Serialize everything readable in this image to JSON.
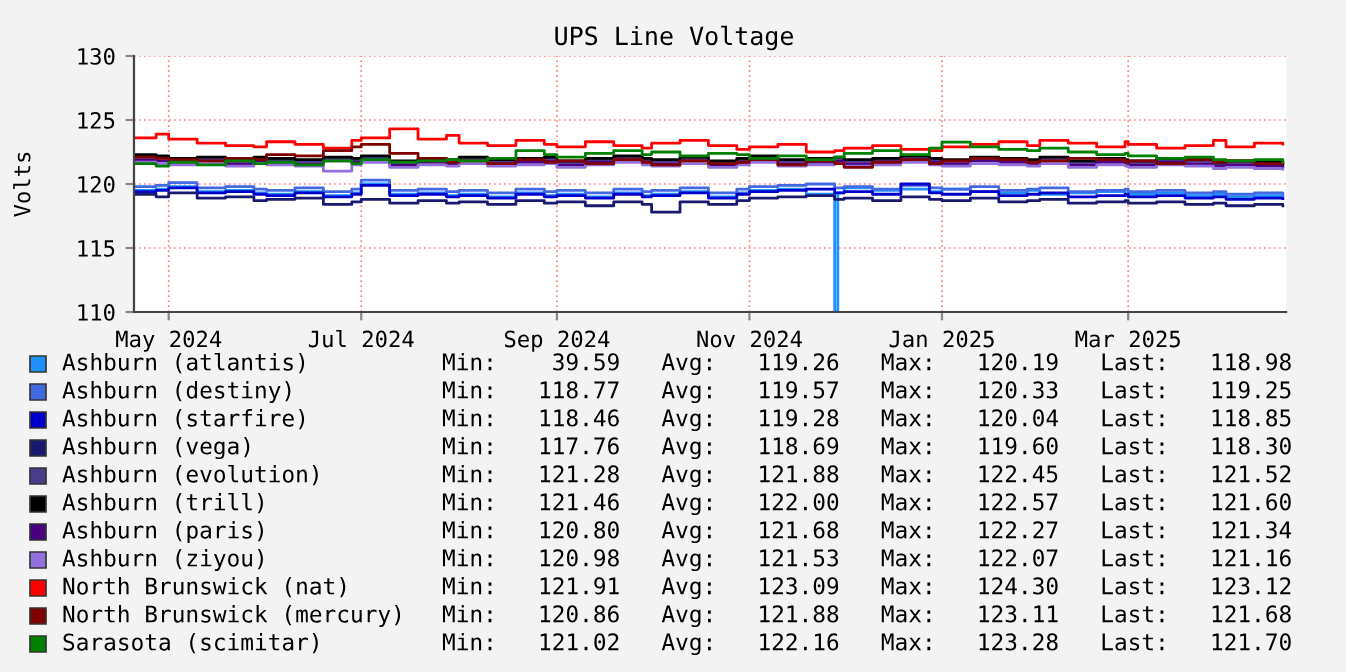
{
  "chart_data": {
    "type": "step",
    "title": "UPS Line Voltage",
    "ylabel": "Volts",
    "x": [
      "2024-04-20",
      "2024-04-27",
      "2024-05-01",
      "2024-05-10",
      "2024-05-19",
      "2024-05-28",
      "2024-06-01",
      "2024-06-10",
      "2024-06-19",
      "2024-06-28",
      "2024-07-01",
      "2024-07-10",
      "2024-07-19",
      "2024-07-28",
      "2024-08-01",
      "2024-08-10",
      "2024-08-19",
      "2024-08-28",
      "2024-09-01",
      "2024-09-10",
      "2024-09-19",
      "2024-09-28",
      "2024-10-01",
      "2024-10-10",
      "2024-10-19",
      "2024-10-28",
      "2024-11-01",
      "2024-11-10",
      "2024-11-19",
      "2024-11-28",
      "2024-12-01",
      "2024-12-10",
      "2024-12-19",
      "2024-12-28",
      "2025-01-01",
      "2025-01-10",
      "2025-01-19",
      "2025-01-28",
      "2025-02-01",
      "2025-02-10",
      "2025-02-19",
      "2025-02-28",
      "2025-03-01",
      "2025-03-10",
      "2025-03-19",
      "2025-03-28",
      "2025-04-01",
      "2025-04-10",
      "2025-04-19"
    ],
    "xlim": [
      "2024-04-20",
      "2025-04-20"
    ],
    "xticks": [
      {
        "value": "2024-05-01",
        "label": "May 2024"
      },
      {
        "value": "2024-07-01",
        "label": "Jul 2024"
      },
      {
        "value": "2024-09-01",
        "label": "Sep 2024"
      },
      {
        "value": "2024-11-01",
        "label": "Nov 2024"
      },
      {
        "value": "2025-01-01",
        "label": "Jan 2025"
      },
      {
        "value": "2025-03-01",
        "label": "Mar 2025"
      }
    ],
    "ylim": [
      110,
      130
    ],
    "yticks": [
      110,
      115,
      120,
      125,
      130
    ],
    "grid": true,
    "legend": "bottom",
    "series": [
      {
        "name": "Ashburn (atlantis)",
        "color": "#1e90ff",
        "x": [
          "2024-04-20",
          "2024-04-27",
          "2024-05-01",
          "2024-05-10",
          "2024-05-19",
          "2024-05-28",
          "2024-06-01",
          "2024-06-10",
          "2024-06-19",
          "2024-06-28",
          "2024-07-01",
          "2024-07-10",
          "2024-07-19",
          "2024-07-28",
          "2024-08-01",
          "2024-08-10",
          "2024-08-19",
          "2024-08-28",
          "2024-09-01",
          "2024-09-10",
          "2024-09-19",
          "2024-09-28",
          "2024-10-01",
          "2024-10-10",
          "2024-10-19",
          "2024-10-28",
          "2024-11-01",
          "2024-11-10",
          "2024-11-19",
          "2024-11-28",
          "2024-11-29",
          "2024-12-01",
          "2024-12-10",
          "2024-12-19",
          "2024-12-28",
          "2025-01-01",
          "2025-01-10",
          "2025-01-19",
          "2025-01-28",
          "2025-02-01",
          "2025-02-10",
          "2025-02-19",
          "2025-02-28",
          "2025-03-01",
          "2025-03-10",
          "2025-03-19",
          "2025-03-28",
          "2025-04-01",
          "2025-04-10",
          "2025-04-19"
        ],
        "values": [
          119.5,
          119.6,
          119.8,
          119.4,
          119.5,
          119.3,
          119.2,
          119.4,
          119.1,
          119.3,
          120.0,
          119.2,
          119.3,
          119.1,
          119.2,
          119.0,
          119.3,
          119.1,
          119.2,
          119.0,
          119.3,
          119.1,
          119.2,
          119.4,
          119.0,
          119.3,
          119.5,
          119.6,
          119.2,
          110,
          119.3,
          119.7,
          119.5,
          119.6,
          119.4,
          119.6,
          119.4,
          119.3,
          119.5,
          119.2,
          119.3,
          119.4,
          119.1,
          119.2,
          119.3,
          119.1,
          119.2,
          119.0,
          119.1,
          118.98
        ]
      },
      {
        "name": "Ashburn (destiny)",
        "color": "#4169e1",
        "values": [
          119.8,
          119.9,
          120.1,
          119.7,
          119.8,
          119.6,
          119.5,
          119.7,
          119.4,
          119.6,
          120.3,
          119.5,
          119.6,
          119.4,
          119.5,
          119.3,
          119.6,
          119.4,
          119.5,
          119.3,
          119.6,
          119.4,
          119.5,
          119.7,
          119.3,
          119.6,
          119.8,
          119.9,
          120.0,
          119.7,
          119.8,
          119.6,
          119.9,
          119.7,
          119.6,
          119.8,
          119.5,
          119.6,
          119.7,
          119.4,
          119.5,
          119.6,
          119.4,
          119.5,
          119.3,
          119.4,
          119.2,
          119.3,
          119.25
        ]
      },
      {
        "name": "Ashburn (starfire)",
        "color": "#0000cd",
        "values": [
          119.4,
          119.5,
          119.7,
          119.3,
          119.4,
          119.2,
          119.1,
          119.3,
          119.0,
          119.2,
          119.9,
          119.1,
          119.2,
          119.0,
          119.1,
          118.9,
          119.2,
          119.0,
          119.1,
          118.9,
          119.2,
          119.0,
          119.1,
          119.3,
          118.9,
          119.2,
          119.4,
          119.5,
          119.6,
          119.3,
          119.4,
          119.2,
          120.0,
          119.3,
          119.2,
          119.4,
          119.1,
          119.2,
          119.3,
          119.0,
          119.1,
          119.2,
          119.0,
          119.1,
          118.9,
          119.0,
          118.8,
          118.9,
          118.85
        ]
      },
      {
        "name": "Ashburn (vega)",
        "color": "#191970",
        "values": [
          119.2,
          119.0,
          119.3,
          118.9,
          119.0,
          118.7,
          118.8,
          118.9,
          118.4,
          118.6,
          118.8,
          118.5,
          118.7,
          118.5,
          118.6,
          118.4,
          118.7,
          118.5,
          118.6,
          118.3,
          118.6,
          118.4,
          117.8,
          118.6,
          118.4,
          118.7,
          118.9,
          119.0,
          119.1,
          118.8,
          118.9,
          118.7,
          119.0,
          118.8,
          118.7,
          118.9,
          118.6,
          118.7,
          118.8,
          118.5,
          118.6,
          118.7,
          118.5,
          118.6,
          118.4,
          118.5,
          118.3,
          118.4,
          118.3
        ]
      },
      {
        "name": "Ashburn (evolution)",
        "color": "#483d8b",
        "values": [
          122.2,
          122.1,
          121.9,
          122.0,
          121.8,
          122.0,
          121.9,
          121.8,
          122.0,
          121.9,
          122.1,
          121.7,
          121.9,
          121.8,
          122.0,
          121.8,
          121.9,
          122.0,
          121.7,
          121.9,
          122.1,
          121.9,
          121.8,
          122.0,
          121.7,
          121.9,
          122.1,
          121.8,
          121.9,
          122.0,
          121.8,
          121.9,
          122.1,
          121.9,
          121.8,
          122.0,
          121.9,
          121.8,
          122.0,
          121.7,
          121.9,
          121.8,
          121.7,
          121.9,
          121.8,
          121.6,
          121.7,
          121.6,
          121.52
        ]
      },
      {
        "name": "Ashburn (trill)",
        "color": "#000000",
        "values": [
          122.3,
          122.2,
          122.0,
          122.1,
          121.9,
          122.1,
          122.0,
          121.9,
          122.1,
          122.0,
          122.2,
          121.8,
          122.0,
          121.9,
          122.1,
          121.9,
          122.0,
          122.1,
          121.8,
          122.0,
          122.2,
          122.0,
          121.9,
          122.1,
          121.8,
          122.0,
          122.2,
          121.9,
          122.0,
          122.1,
          121.9,
          122.0,
          122.2,
          122.0,
          121.9,
          122.1,
          122.0,
          121.9,
          122.1,
          121.8,
          122.0,
          121.9,
          121.8,
          122.0,
          121.9,
          121.7,
          121.8,
          121.7,
          121.6
        ]
      },
      {
        "name": "Ashburn (paris)",
        "color": "#4b0082",
        "values": [
          121.9,
          121.8,
          121.7,
          121.8,
          121.6,
          121.8,
          121.7,
          121.6,
          121.8,
          121.7,
          121.9,
          121.5,
          121.7,
          121.6,
          121.8,
          121.6,
          121.7,
          121.8,
          121.5,
          121.7,
          121.9,
          121.7,
          121.6,
          121.8,
          121.5,
          121.7,
          121.9,
          121.6,
          121.7,
          121.8,
          121.6,
          121.7,
          121.9,
          121.7,
          121.6,
          121.8,
          121.7,
          121.6,
          121.8,
          121.5,
          121.7,
          121.6,
          121.5,
          121.7,
          121.6,
          121.4,
          121.5,
          121.4,
          121.34
        ]
      },
      {
        "name": "Ashburn (ziyou)",
        "color": "#9370db",
        "values": [
          121.7,
          121.6,
          121.5,
          121.6,
          121.4,
          121.6,
          121.5,
          121.4,
          121.0,
          121.5,
          121.7,
          121.3,
          121.5,
          121.4,
          121.6,
          121.4,
          121.5,
          121.6,
          121.3,
          121.5,
          121.7,
          121.5,
          121.4,
          121.6,
          121.3,
          121.5,
          121.7,
          121.4,
          121.5,
          121.6,
          121.4,
          121.5,
          121.7,
          121.5,
          121.4,
          121.6,
          121.5,
          121.4,
          121.6,
          121.3,
          121.5,
          121.4,
          121.3,
          121.5,
          121.4,
          121.2,
          121.3,
          121.2,
          121.16
        ]
      },
      {
        "name": "North Brunswick (nat)",
        "color": "#ff0000",
        "values": [
          123.6,
          123.9,
          123.5,
          123.2,
          123.0,
          122.9,
          123.3,
          123.1,
          122.8,
          123.4,
          123.6,
          124.3,
          123.5,
          123.8,
          123.2,
          123.0,
          123.4,
          123.1,
          122.9,
          123.3,
          123.0,
          122.8,
          123.2,
          123.4,
          123.0,
          122.7,
          122.9,
          123.1,
          122.5,
          122.6,
          122.8,
          123.0,
          122.7,
          122.6,
          122.9,
          123.1,
          123.3,
          123.0,
          123.4,
          123.2,
          122.9,
          123.3,
          123.1,
          122.8,
          123.0,
          123.4,
          122.9,
          123.2,
          123.12
        ]
      },
      {
        "name": "North Brunswick (mercury)",
        "color": "#800000",
        "values": [
          122.1,
          122.0,
          121.9,
          121.8,
          122.0,
          121.9,
          122.3,
          122.2,
          122.6,
          122.9,
          123.1,
          122.4,
          122.0,
          121.7,
          121.8,
          121.6,
          121.9,
          121.7,
          121.8,
          121.6,
          121.9,
          121.7,
          121.5,
          121.8,
          121.6,
          121.7,
          121.9,
          121.5,
          121.8,
          121.6,
          121.3,
          121.7,
          121.9,
          121.6,
          121.8,
          122.0,
          121.9,
          121.7,
          121.8,
          122.0,
          121.9,
          121.7,
          121.8,
          121.6,
          121.9,
          121.7,
          121.8,
          121.6,
          121.68
        ]
      },
      {
        "name": "Sarasota (scimitar)",
        "color": "#008000",
        "values": [
          121.6,
          121.4,
          121.7,
          121.5,
          121.8,
          121.6,
          121.7,
          121.5,
          121.8,
          121.6,
          121.9,
          121.7,
          121.8,
          121.9,
          121.8,
          122.0,
          122.6,
          122.3,
          122.1,
          122.4,
          122.6,
          122.3,
          122.5,
          122.2,
          122.4,
          122.3,
          122.0,
          122.2,
          121.9,
          122.1,
          122.4,
          122.6,
          122.3,
          122.8,
          123.28,
          122.9,
          122.7,
          122.6,
          122.8,
          122.5,
          122.3,
          122.4,
          122.2,
          122.0,
          122.1,
          121.9,
          121.8,
          121.9,
          121.7
        ]
      }
    ],
    "annotations": [
      "Min:    39.59   Avg:   119.26   Max:   120.19   Last:   118.98",
      "Min:   118.77   Avg:   119.57   Max:   120.33   Last:   119.25",
      "Min:   118.46   Avg:   119.28   Max:   120.04   Last:   118.85",
      "Min:   117.76   Avg:   118.69   Max:   119.60   Last:   118.30",
      "Min:   121.28   Avg:   121.88   Max:   122.45   Last:   121.52",
      "Min:   121.46   Avg:   122.00   Max:   122.57   Last:   121.60",
      "Min:   120.80   Avg:   121.68   Max:   122.27   Last:   121.34",
      "Min:   120.98   Avg:   121.53   Max:   122.07   Last:   121.16",
      "Min:   121.91   Avg:   123.09   Max:   124.30   Last:   123.12",
      "Min:   120.86   Avg:   121.88   Max:   123.11   Last:   121.68",
      "Min:   121.02   Avg:   122.16   Max:   123.28   Last:   121.70"
    ]
  }
}
